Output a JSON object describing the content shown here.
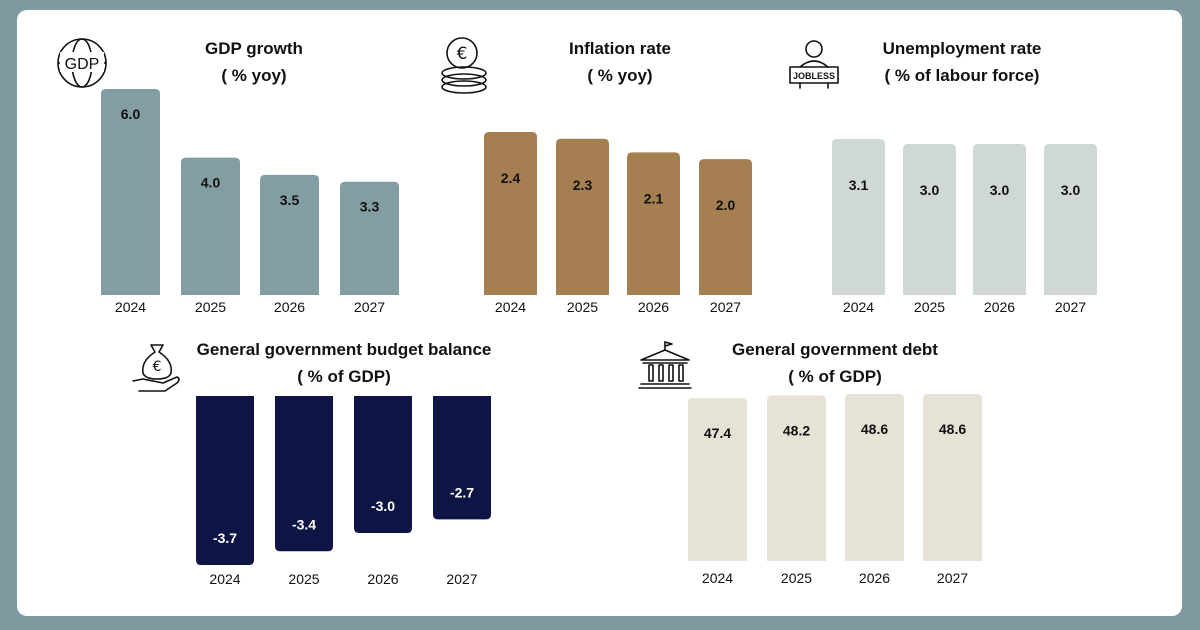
{
  "chart_data": [
    {
      "id": "gdp",
      "type": "bar",
      "title": "GDP growth",
      "subtitle": "( % yoy)",
      "icon": "globe-gdp-icon",
      "icon_text": "GDP",
      "categories": [
        "2024",
        "2025",
        "2026",
        "2027"
      ],
      "values": [
        6.0,
        4.0,
        3.5,
        3.3
      ],
      "ylim": [
        0,
        6.0
      ],
      "color": "#829ea3",
      "label_color": "#111111"
    },
    {
      "id": "inflation",
      "type": "bar",
      "title": "Inflation rate",
      "subtitle": "( % yoy)",
      "icon": "euro-coins-icon",
      "categories": [
        "2024",
        "2025",
        "2026",
        "2027"
      ],
      "values": [
        2.4,
        2.3,
        2.1,
        2.0
      ],
      "ylim": [
        0,
        2.4
      ],
      "color": "#a57f52",
      "label_color": "#111111"
    },
    {
      "id": "unemployment",
      "type": "bar",
      "title": "Unemployment rate",
      "subtitle": "( % of labour force)",
      "icon": "jobless-person-icon",
      "icon_text": "JOBLESS",
      "categories": [
        "2024",
        "2025",
        "2026",
        "2027"
      ],
      "values": [
        3.1,
        3.0,
        3.0,
        3.0
      ],
      "ylim": [
        0,
        3.1
      ],
      "color": "#cfd8d5",
      "label_color": "#111111"
    },
    {
      "id": "budget",
      "type": "bar",
      "title": "General government budget balance",
      "subtitle": "( % of GDP)",
      "icon": "money-bag-hand-icon",
      "categories": [
        "2024",
        "2025",
        "2026",
        "2027"
      ],
      "values": [
        -3.7,
        -3.4,
        -3.0,
        -2.7
      ],
      "ylim": [
        -3.7,
        0
      ],
      "color": "#0e1545",
      "label_color": "#ffffff"
    },
    {
      "id": "debt",
      "type": "bar",
      "title": "General government debt",
      "subtitle": "( % of GDP)",
      "icon": "government-building-icon",
      "categories": [
        "2024",
        "2025",
        "2026",
        "2027"
      ],
      "values": [
        47.4,
        48.2,
        48.6,
        48.6
      ],
      "ylim": [
        0,
        48.6
      ],
      "color": "#e6e2d6",
      "label_color": "#111111"
    }
  ]
}
